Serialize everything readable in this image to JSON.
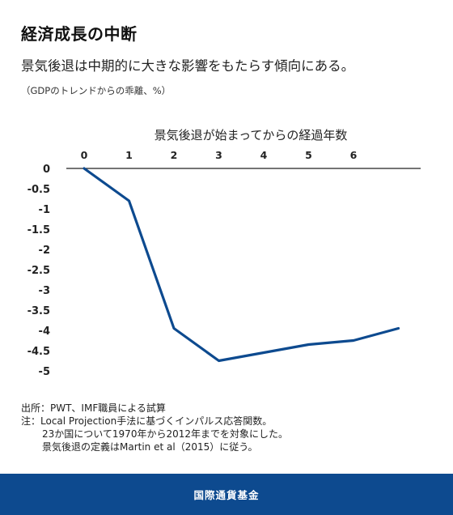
{
  "header": {
    "title": "経済成長の中断",
    "subtitle": "景気後退は中期的に大きな影響をもたらす傾向にある。",
    "unit_note": "（GDPのトレンドからの乖離、%）"
  },
  "chart_data": {
    "type": "line",
    "title": "",
    "xlabel": "景気後退が始まってからの経過年数",
    "ylabel": "",
    "x": [
      0,
      1,
      2,
      3,
      4,
      5,
      6,
      7
    ],
    "x_tick_labels": [
      "0",
      "1",
      "2",
      "3",
      "4",
      "5",
      "6"
    ],
    "y_tick_labels": [
      "0",
      "-0.5",
      "-1",
      "-1.5",
      "-2",
      "-2.5",
      "-3",
      "-3.5",
      "-4",
      "-4.5",
      "-5"
    ],
    "y_ticks": [
      0,
      -0.5,
      -1,
      -1.5,
      -2,
      -2.5,
      -3,
      -3.5,
      -4,
      -4.5,
      -5
    ],
    "xlim": [
      0,
      7
    ],
    "ylim": [
      -5,
      0
    ],
    "x_axis_position": "top",
    "grid": false,
    "series": [
      {
        "values": [
          0,
          -0.8,
          -3.95,
          -4.75,
          -4.55,
          -4.35,
          -4.25,
          -3.95
        ],
        "color": "#0d4a8f"
      }
    ]
  },
  "notes": {
    "source": "出所：PWT、IMF職員による試算",
    "note_line1": "注：Local Projection手法に基づくインパルス応答関数。",
    "note_line2": "23か国について1970年から2012年までを対象にした。",
    "note_line3": "景気後退の定義はMartin et al（2015）に従う。"
  },
  "footer": {
    "label": "国際通貨基金"
  },
  "colors": {
    "footer_bg": "#0d4a8f",
    "line": "#0d4a8f"
  }
}
